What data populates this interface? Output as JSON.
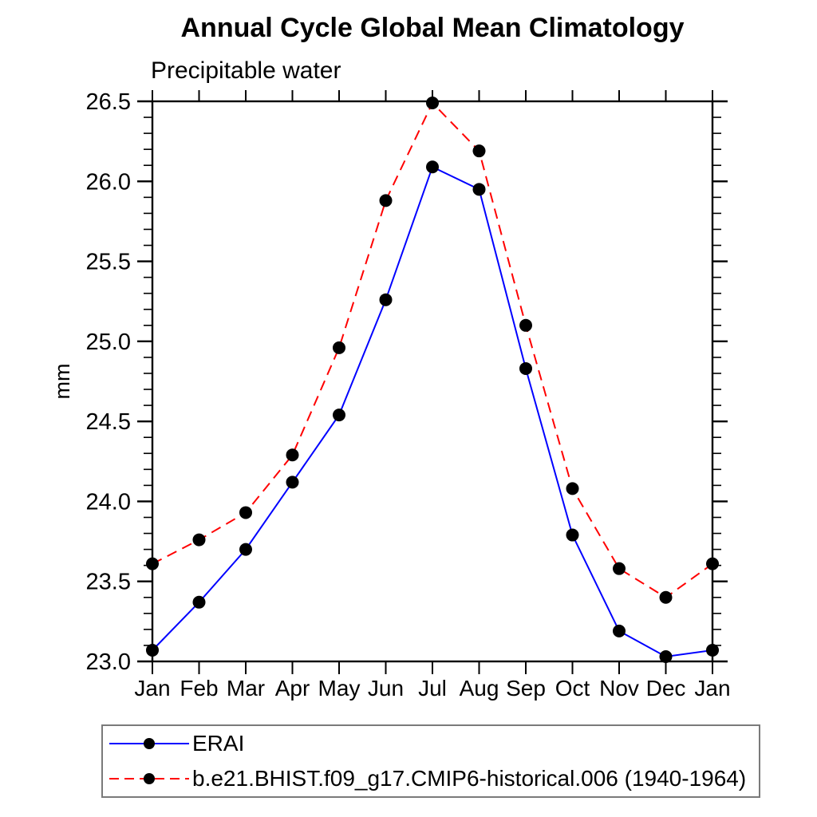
{
  "chart_data": {
    "type": "line",
    "title": "Annual Cycle Global Mean Climatology",
    "subtitle": "Precipitable water",
    "xlabel": "",
    "ylabel": "mm",
    "categories": [
      "Jan",
      "Feb",
      "Mar",
      "Apr",
      "May",
      "Jun",
      "Jul",
      "Aug",
      "Sep",
      "Oct",
      "Nov",
      "Dec",
      "Jan"
    ],
    "ylim": [
      23.0,
      26.5
    ],
    "ytick_labels": [
      "23.0",
      "23.5",
      "24.0",
      "24.5",
      "25.0",
      "25.5",
      "26.0",
      "26.5"
    ],
    "ytick_minor_step": 0.1,
    "grid": false,
    "legend_position": "bottom-left",
    "axis_color": "#000000",
    "marker_shape": "filled-circle",
    "series": [
      {
        "name": "ERAI",
        "color": "#0000ff",
        "line_style": "solid",
        "marker_color": "#000000",
        "values": [
          23.07,
          23.37,
          23.7,
          24.12,
          24.54,
          25.26,
          26.09,
          25.95,
          24.83,
          23.79,
          23.19,
          23.03,
          23.07
        ]
      },
      {
        "name": "b.e21.BHIST.f09_g17.CMIP6-historical.006 (1940-1964)",
        "color": "#ff0000",
        "line_style": "dashed",
        "marker_color": "#000000",
        "values": [
          23.61,
          23.76,
          23.93,
          24.29,
          24.96,
          25.88,
          26.49,
          26.19,
          25.1,
          24.08,
          23.58,
          23.4,
          23.61
        ]
      }
    ]
  }
}
